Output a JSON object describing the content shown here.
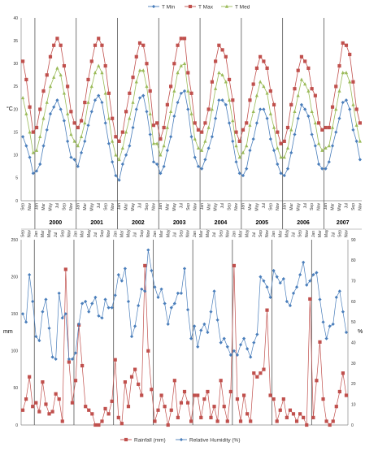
{
  "chart_data": [
    {
      "type": "line",
      "ylabel": "°C",
      "ylim": [
        0,
        40
      ],
      "yticks": [
        0,
        5,
        10,
        15,
        20,
        25,
        30,
        35,
        40
      ],
      "grid": "vertical year separators",
      "legend": "top-right",
      "x": [
        "Sep",
        "Oct",
        "Nov",
        "Dec",
        "Jan",
        "Feb",
        "Mar",
        "Apr",
        "May",
        "Jun",
        "Jul",
        "Aug",
        "Sep",
        "Oct",
        "Nov",
        "Dec",
        "Jan",
        "Feb",
        "Mar",
        "Apr",
        "May",
        "Jun",
        "Jul",
        "Aug",
        "Sep",
        "Oct",
        "Nov",
        "Dec",
        "Jan",
        "Feb",
        "Mar",
        "Apr",
        "May",
        "Jun",
        "Jul",
        "Aug",
        "Sep",
        "Oct",
        "Nov",
        "Dec",
        "Jan",
        "Feb",
        "Mar",
        "Apr",
        "May",
        "Jun",
        "Jul",
        "Aug",
        "Sep",
        "Oct",
        "Nov",
        "Dec",
        "Jan",
        "Feb",
        "Mar",
        "Apr",
        "May",
        "Jun",
        "Jul",
        "Aug",
        "Sep",
        "Oct",
        "Nov",
        "Dec",
        "Jan",
        "Feb",
        "Mar",
        "Apr",
        "May",
        "Jun",
        "Jul",
        "Aug",
        "Sep",
        "Oct",
        "Nov",
        "Dec",
        "Jan",
        "Feb",
        "Mar",
        "Apr",
        "May",
        "Jun",
        "Jul",
        "Aug",
        "Sep",
        "Oct",
        "Nov",
        "Dec",
        "Jan",
        "Feb",
        "Mar",
        "Apr",
        "May",
        "Jun",
        "Jul",
        "Aug",
        "Sep",
        "Oct",
        "Nov"
      ],
      "year_labels": [
        {
          "label": "2000",
          "start": 4,
          "end": 15
        },
        {
          "label": "2001",
          "start": 16,
          "end": 27
        },
        {
          "label": "2002",
          "start": 28,
          "end": 39
        },
        {
          "label": "2003",
          "start": 40,
          "end": 51
        },
        {
          "label": "2004",
          "start": 52,
          "end": 63
        },
        {
          "label": "2005",
          "start": 64,
          "end": 75
        },
        {
          "label": "2006",
          "start": 76,
          "end": 87
        },
        {
          "label": "2007",
          "start": 88,
          "end": 98
        }
      ],
      "separators_after": [
        3,
        15,
        27,
        39,
        51,
        63,
        75,
        87
      ],
      "series": [
        {
          "name": "T Min",
          "color": "#4a7ebb",
          "marker": "diamond",
          "values": [
            14,
            12,
            9.5,
            6,
            6.5,
            8,
            12,
            15.5,
            19,
            20.5,
            22,
            20,
            17.5,
            13,
            9.5,
            9,
            7.5,
            10.5,
            13,
            16.5,
            19.5,
            22,
            23,
            21.5,
            17,
            12.5,
            8.5,
            5.5,
            4.5,
            8,
            10,
            12,
            16,
            20,
            22.5,
            23,
            19.5,
            14.5,
            8.5,
            8,
            6,
            7.5,
            11,
            14,
            18.5,
            21.5,
            23.5,
            24,
            20,
            14,
            9.5,
            7.5,
            7,
            9,
            11.5,
            14,
            18,
            22,
            22,
            21,
            17,
            13,
            8.5,
            6,
            5.5,
            7,
            11,
            13.5,
            17,
            20,
            20,
            18,
            13.5,
            11,
            8,
            6,
            5.5,
            7,
            10.5,
            14.5,
            18,
            21,
            20,
            18.5,
            14.5,
            12,
            8,
            7,
            7,
            8.5,
            12,
            15,
            18,
            21.5,
            22,
            20,
            15.5,
            13,
            9
          ]
        },
        {
          "name": "T Max",
          "color": "#c0504d",
          "marker": "square",
          "values": [
            30.5,
            26.5,
            20.5,
            15,
            16,
            20,
            24,
            27.5,
            31.5,
            34,
            35.5,
            34,
            29.5,
            25,
            19.5,
            17,
            16,
            17.5,
            21.5,
            26.5,
            30.5,
            34,
            35.5,
            34,
            29.5,
            23.5,
            18,
            14,
            13,
            15,
            19.5,
            23.5,
            27,
            31.5,
            34.5,
            34,
            30,
            24,
            16.5,
            17,
            13.5,
            16,
            21,
            25,
            30,
            34,
            35.5,
            35.5,
            28,
            23.5,
            17,
            15.5,
            15,
            17,
            20,
            26,
            30.5,
            34,
            33,
            31.5,
            26.5,
            22,
            15,
            13,
            15.5,
            17,
            22,
            25.5,
            29,
            31.5,
            30.5,
            29,
            24,
            21,
            15,
            12.5,
            13,
            16,
            21,
            24.5,
            28.5,
            31.5,
            30.5,
            29,
            24.5,
            23,
            17,
            15.5,
            16,
            16,
            20.5,
            25,
            29.5,
            34.5,
            34,
            32,
            26,
            20,
            17
          ]
        },
        {
          "name": "T Med",
          "color": "#9bbb59",
          "marker": "triangle",
          "values": [
            22.5,
            19,
            15,
            10.5,
            11,
            14,
            18,
            21.5,
            25,
            27,
            29,
            27.5,
            23.5,
            19,
            14.5,
            13,
            12,
            14,
            17,
            21.5,
            25,
            28,
            29.5,
            28,
            23.5,
            18,
            13,
            10,
            9,
            11.5,
            15,
            18,
            21.5,
            26,
            28.5,
            28.5,
            25,
            19,
            12.5,
            12.5,
            10,
            12,
            16,
            19.5,
            24,
            28,
            29.5,
            30,
            24,
            19,
            13.5,
            11.5,
            11,
            13,
            16,
            20,
            24.5,
            28,
            27.5,
            26,
            22,
            17.5,
            12,
            9.5,
            10.5,
            12,
            16.5,
            19.5,
            23,
            26,
            25,
            23.5,
            19,
            16,
            11.5,
            9.5,
            9.5,
            11.5,
            15.5,
            19.5,
            23,
            26.5,
            25.5,
            24,
            19.5,
            17,
            12.5,
            11,
            11.5,
            12,
            16,
            20,
            24,
            28,
            28,
            26,
            21,
            16.5,
            13
          ]
        }
      ]
    },
    {
      "type": "line",
      "ylabel": "mm",
      "y2label": "%",
      "ylim": [
        0,
        250
      ],
      "y2lim": [
        0,
        90
      ],
      "yticks": [
        0,
        50,
        100,
        150,
        200,
        250
      ],
      "y2ticks": [
        0,
        10,
        20,
        30,
        40,
        50,
        60,
        70,
        80,
        90
      ],
      "legend": "bottom",
      "x": [
        "Sep",
        "Oct",
        "Nov",
        "Dec",
        "Jan",
        "Feb",
        "Mar",
        "Apr",
        "May",
        "Jun",
        "Jul",
        "Aug",
        "Sep",
        "Oct",
        "Nov",
        "Dec",
        "Jan",
        "Feb",
        "Mar",
        "Apr",
        "May",
        "Jun",
        "Jul",
        "Aug",
        "Sep",
        "Oct",
        "Nov",
        "Dec",
        "Jan",
        "Feb",
        "Mar",
        "Apr",
        "May",
        "Jun",
        "Jul",
        "Aug",
        "Sep",
        "Oct",
        "Nov",
        "Dec",
        "Jan",
        "Feb",
        "Mar",
        "Apr",
        "May",
        "Jun",
        "Jul",
        "Aug",
        "Sep",
        "Oct",
        "Nov",
        "Dec",
        "Jan",
        "Feb",
        "Mar",
        "Apr",
        "May",
        "Jun",
        "Jul",
        "Aug",
        "Sep",
        "Oct",
        "Nov",
        "Dec",
        "Jan",
        "Feb",
        "Mar",
        "Apr",
        "May",
        "Jun",
        "Jul",
        "Aug",
        "Sep",
        "Oct",
        "Nov",
        "Dec",
        "Jan",
        "Feb",
        "Mar",
        "Apr",
        "May",
        "Jun",
        "Jul",
        "Aug",
        "Sep",
        "Oct",
        "Nov",
        "Dec",
        "Jan",
        "Feb",
        "Mar",
        "Apr",
        "May",
        "Jun",
        "Jul",
        "Aug",
        "Sep",
        "Oct",
        "Nov"
      ],
      "separators_after": [
        3,
        15,
        27,
        39,
        51,
        63,
        75,
        87
      ],
      "series": [
        {
          "name": "Rainfall (mm)",
          "axis": "left",
          "color": "#c0504d",
          "marker": "square",
          "values": [
            20,
            35,
            65,
            25,
            30,
            18,
            58,
            28,
            15,
            18,
            42,
            35,
            5,
            210,
            85,
            30,
            60,
            135,
            80,
            25,
            20,
            15,
            0,
            0,
            5,
            22,
            15,
            32,
            88,
            10,
            2,
            58,
            25,
            65,
            75,
            55,
            40,
            215,
            100,
            48,
            5,
            20,
            40,
            25,
            0,
            20,
            60,
            10,
            30,
            45,
            30,
            5,
            40,
            40,
            10,
            35,
            45,
            10,
            25,
            5,
            60,
            25,
            5,
            45,
            215,
            35,
            5,
            40,
            15,
            5,
            70,
            65,
            70,
            75,
            155,
            40,
            35,
            5,
            20,
            35,
            10,
            20,
            15,
            5,
            15,
            10,
            0,
            170,
            10,
            60,
            112,
            35,
            5,
            0,
            5,
            25,
            45,
            70,
            40
          ]
        },
        {
          "name": "Relative Humidity (%)",
          "axis": "right",
          "color": "#4a7ebb",
          "marker": "diamond",
          "values": [
            54,
            50,
            73,
            60,
            43,
            41,
            55,
            61,
            47,
            33,
            32,
            64,
            52,
            54,
            32,
            32,
            35,
            49,
            59,
            60,
            55,
            59,
            62,
            53,
            52,
            61,
            57,
            57,
            63,
            73,
            70,
            76,
            60,
            43,
            48,
            58,
            66,
            65,
            85,
            75,
            67,
            62,
            66,
            59,
            49,
            57,
            59,
            64,
            64,
            76,
            56,
            42,
            48,
            38,
            46,
            49,
            45,
            55,
            65,
            51,
            40,
            42,
            38,
            34,
            36,
            34,
            39,
            42,
            37,
            33,
            40,
            44,
            72,
            70,
            67,
            62,
            75,
            72,
            69,
            71,
            60,
            58,
            64,
            67,
            73,
            79,
            68,
            70,
            73,
            74,
            61,
            50,
            42,
            48,
            49,
            62,
            65,
            55,
            45
          ]
        }
      ]
    }
  ]
}
